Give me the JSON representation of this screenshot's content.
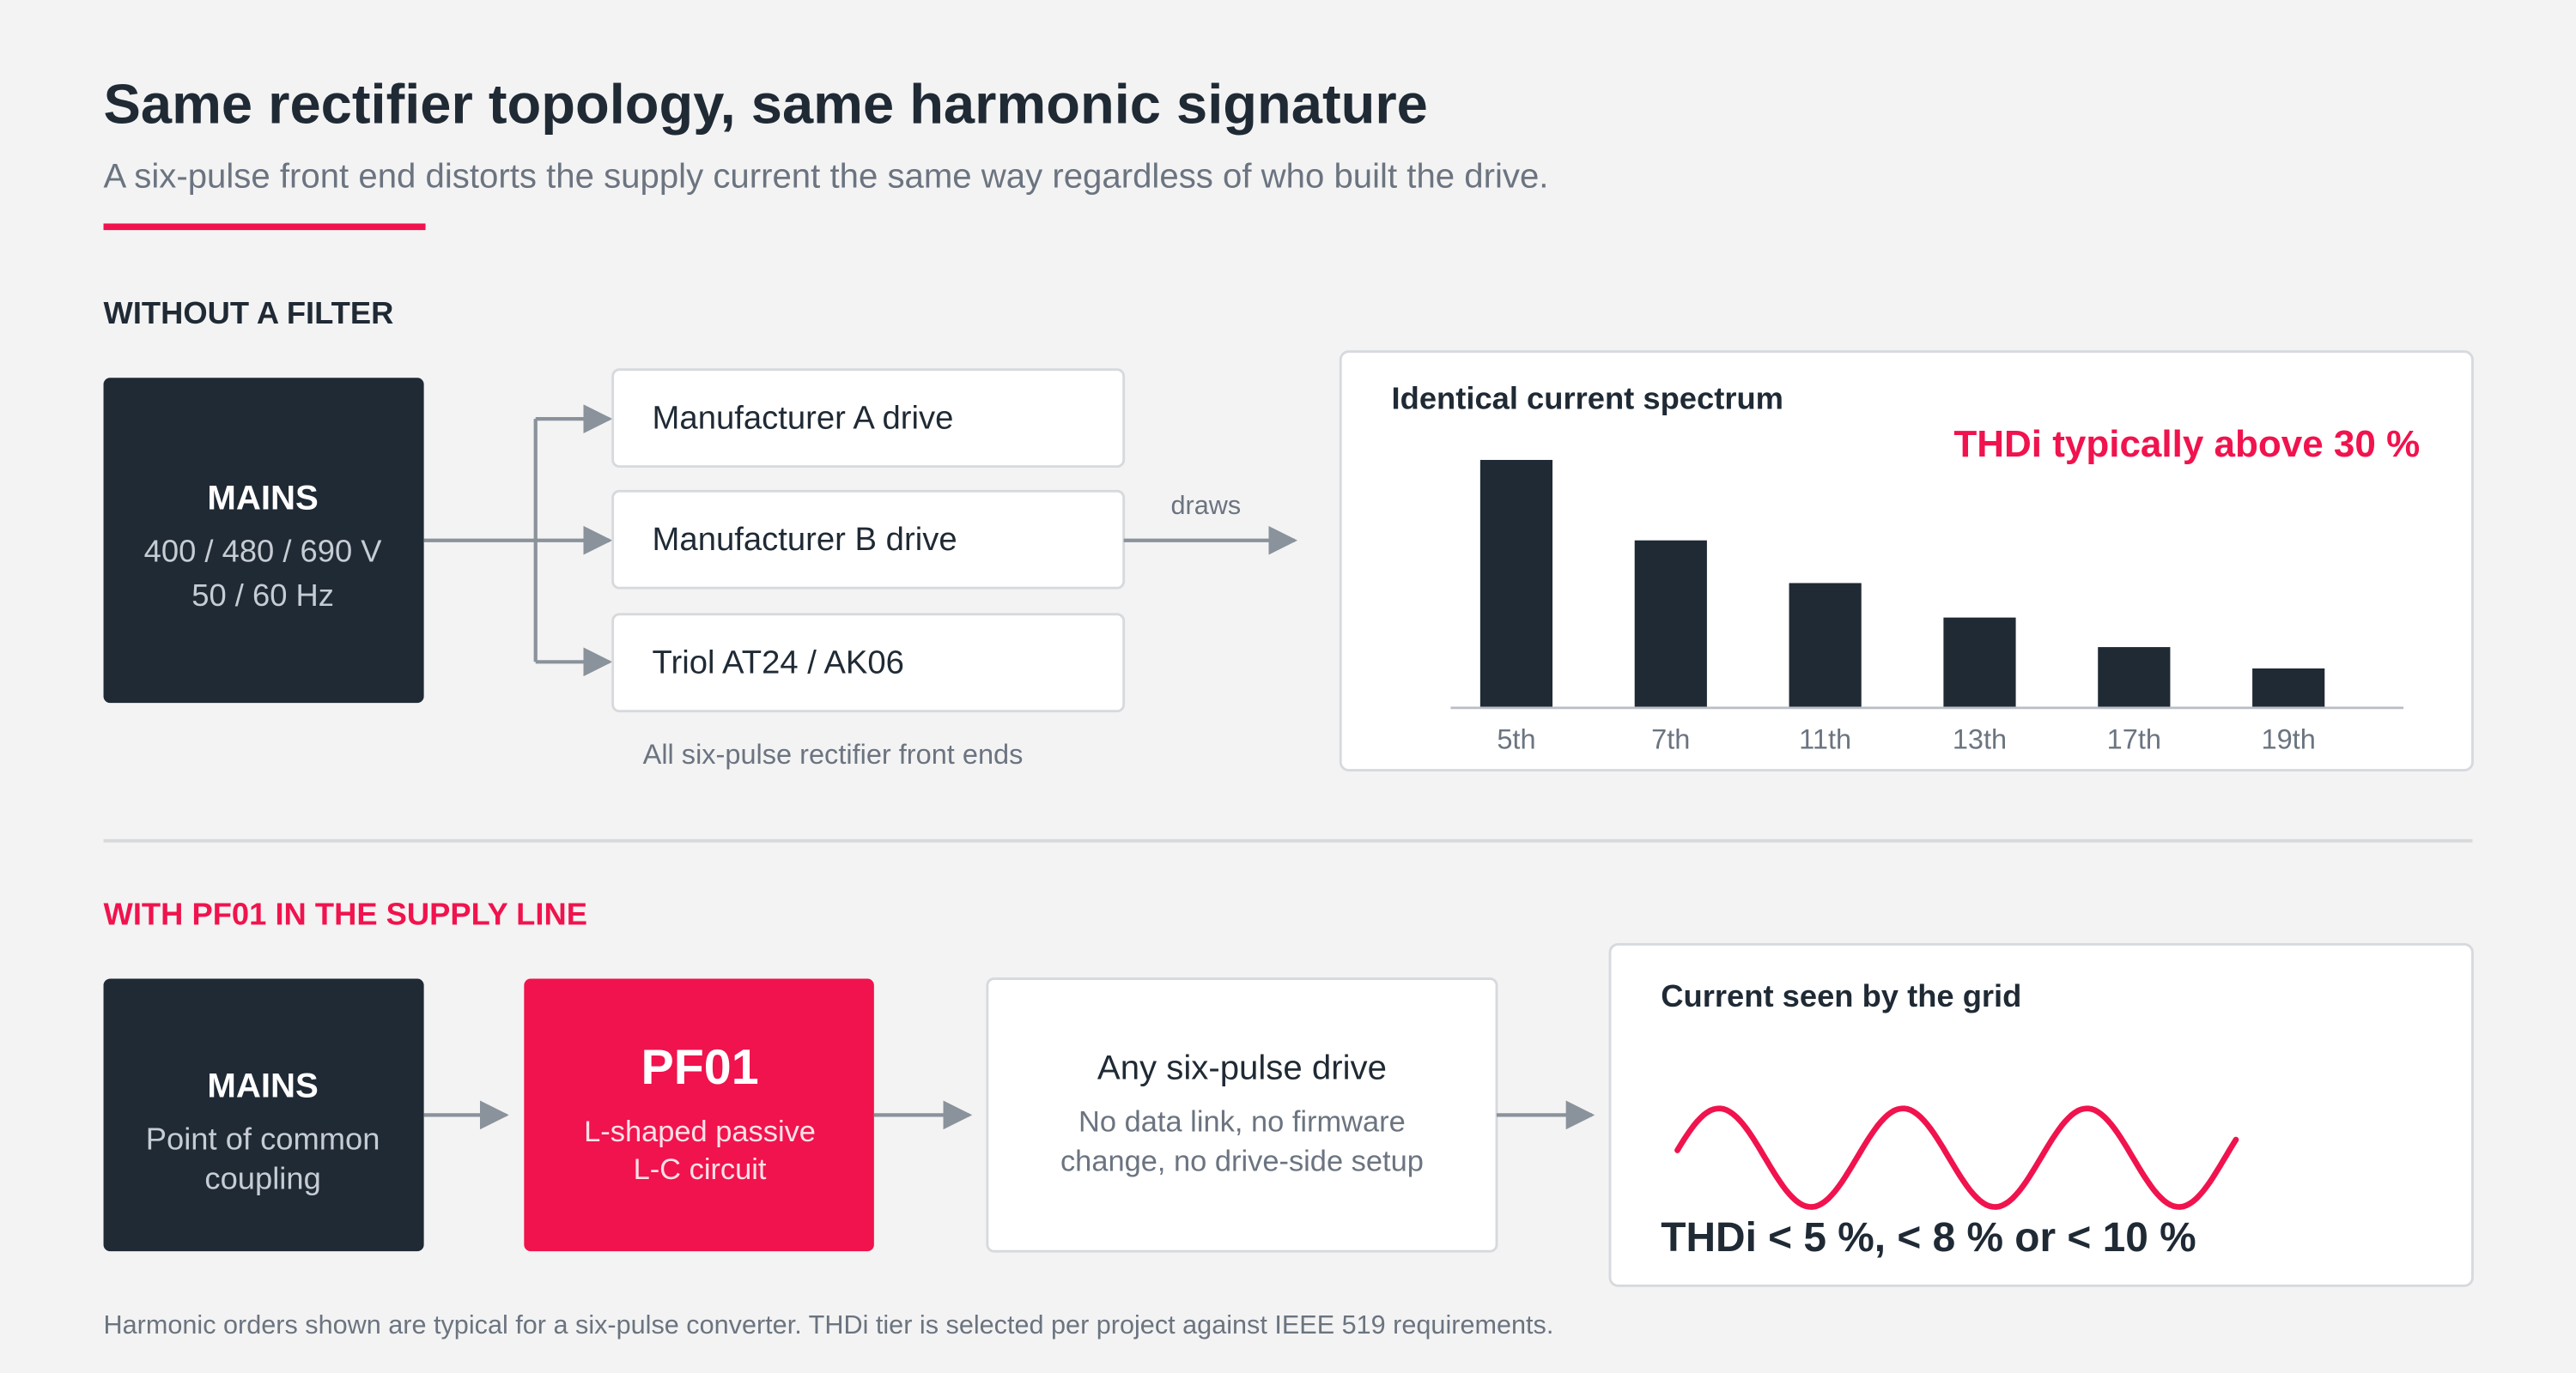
{
  "header": {
    "title": "Same rectifier topology, same harmonic signature",
    "subtitle": "A six-pulse front end distorts the supply current the same way regardless of who built the drive."
  },
  "without_filter": {
    "heading": "WITHOUT A FILTER",
    "mains": {
      "title": "MAINS",
      "lines": [
        "400 / 480 / 690 V",
        "50 / 60 Hz"
      ]
    },
    "drives": [
      "Manufacturer A drive",
      "Manufacturer B drive",
      "Triol AT24 / AK06"
    ],
    "drives_caption": "All six-pulse rectifier front ends",
    "arrow_label": "draws",
    "chart_data": {
      "type": "bar",
      "title": "Identical current spectrum",
      "annotation": "THDi typically above 30 %",
      "categories": [
        "5th",
        "7th",
        "11th",
        "13th",
        "17th",
        "19th"
      ],
      "values": [
        151,
        102,
        76,
        55,
        37,
        24
      ],
      "color": "#1f2a35"
    }
  },
  "with_filter": {
    "heading": "WITH PF01 IN THE SUPPLY LINE",
    "mains": {
      "title": "MAINS",
      "lines": [
        "Point of common",
        "coupling"
      ]
    },
    "filter": {
      "title": "PF01",
      "lines": [
        "L-shaped passive",
        "L-C circuit"
      ]
    },
    "drive": {
      "title": "Any six-pulse drive",
      "lines": [
        "No data link, no firmware",
        "change, no drive-side setup"
      ]
    },
    "grid": {
      "title": "Current seen by the grid",
      "annotation": "THDi < 5 %, < 8 % or < 10 %"
    }
  },
  "footnote": "Harmonic orders shown are typical for a six-pulse converter. THDi tier is selected per project against IEEE 519 requirements."
}
